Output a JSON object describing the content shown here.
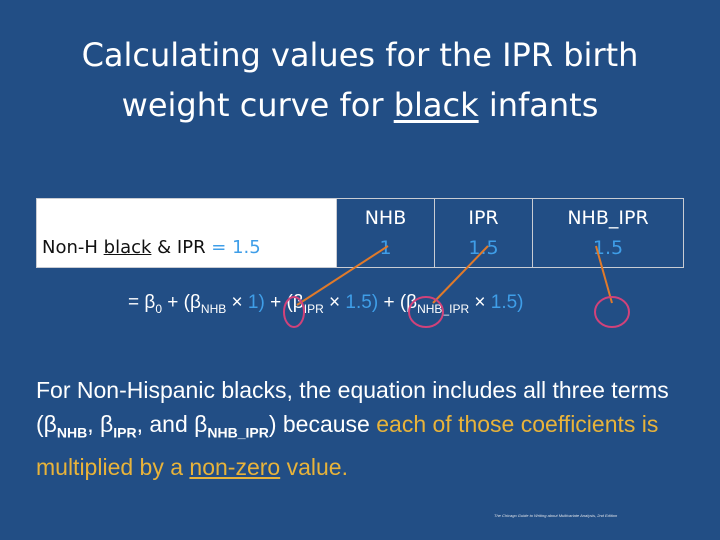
{
  "title": {
    "line1": "Calculating values for the IPR birth",
    "line2_pre": "weight curve for ",
    "line2_underlined": "black",
    "line2_post": " infants"
  },
  "table": {
    "row_label_pre": "Non-H ",
    "row_label_underlined": "black",
    "row_label_mid": " & IPR ",
    "row_label_value": "= 1.5",
    "columns": [
      {
        "header": "NHB",
        "value": "1"
      },
      {
        "header": "IPR",
        "value": "1.5"
      },
      {
        "header": "NHB_IPR",
        "value": "1.5"
      }
    ]
  },
  "equation": {
    "lead": "= β",
    "sub0": "0",
    "t1_open": " + (β",
    "t1_sub": "NHB",
    "t1_times": " × ",
    "t1_val": "1)",
    "t2_open": " + (β",
    "t2_sub": "IPR",
    "t2_times": " × ",
    "t2_val": "1.5)",
    "t3_open": " + (β",
    "t3_sub": "NHB_IPR",
    "t3_times": " × ",
    "t3_val": "1.5)"
  },
  "paragraph": {
    "p1": "For Non-Hispanic blacks, the equation includes all three terms (β",
    "s1": "NHB",
    "p2": ", β",
    "s2": "IPR",
    "p3": ", and β",
    "s3": "NHB_IPR",
    "p4": ") because ",
    "hl1": "each of those coefficients is multiplied by a ",
    "hl_u": "non-zero",
    "hl2": " value."
  },
  "footer": "The Chicago Guide to Writing about Multivariate Analysis, 2nd Edition",
  "colors": {
    "background": "#224e85",
    "accent_blue": "#3f9ee8",
    "accent_gold": "#e8b33a",
    "arrow": "#e07a2a",
    "circle": "#d1427a"
  }
}
